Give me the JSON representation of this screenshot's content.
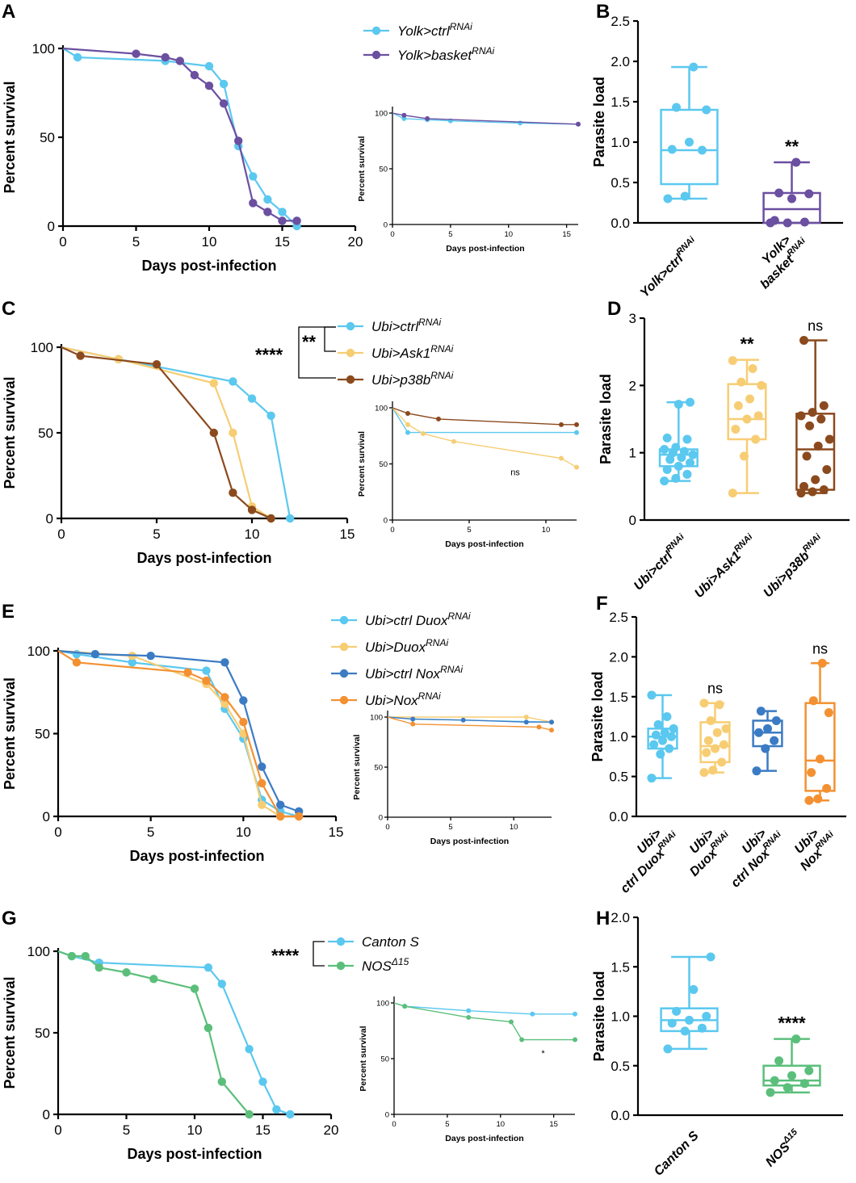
{
  "colors": {
    "light_blue": "#5bc8ef",
    "purple": "#6b4fa0",
    "yellow": "#f7cd74",
    "brown": "#8b4a1e",
    "blue": "#3b7bc4",
    "orange": "#f39132",
    "green": "#5bbf7b"
  },
  "panels": {
    "A": "A",
    "B": "B",
    "C": "C",
    "D": "D",
    "E": "E",
    "F": "F",
    "G": "G",
    "H": "H"
  },
  "chart_data": [
    {
      "id": "A",
      "type": "line",
      "xlabel": "Days post-infection",
      "ylabel": "Percent survival",
      "xlim": [
        0,
        20
      ],
      "ylim": [
        0,
        100
      ],
      "xticks": [
        "0",
        "5",
        "10",
        "15",
        "20"
      ],
      "yticks": [
        "0",
        "50",
        "100"
      ],
      "series": [
        {
          "name": "Yolk>ctrl",
          "sup": "RNAi",
          "color": "#5bc8ef",
          "x": [
            0,
            1,
            7,
            10,
            11,
            12,
            13,
            14,
            15,
            16
          ],
          "y": [
            100,
            95,
            93,
            90,
            80,
            45,
            28,
            15,
            8,
            0
          ]
        },
        {
          "name": "Yolk>basket",
          "sup": "RNAi",
          "color": "#6b4fa0",
          "x": [
            0,
            5,
            7,
            8,
            9,
            10,
            11,
            12,
            13,
            14,
            15,
            16
          ],
          "y": [
            100,
            97,
            95,
            93,
            85,
            79,
            69,
            48,
            13,
            8,
            3,
            3
          ]
        }
      ],
      "inset": {
        "xlabel": "Days post-infection",
        "ylabel": "Percent survival",
        "xlim": [
          0,
          16
        ],
        "ylim": [
          0,
          100
        ],
        "xticks": [
          "0",
          "5",
          "10",
          "15"
        ],
        "yticks": [
          "0",
          "50",
          "100"
        ],
        "series": [
          {
            "color": "#5bc8ef",
            "x": [
              0,
              1,
              3,
              5,
              11,
              16
            ],
            "y": [
              100,
              95,
              94,
              93,
              91,
              90
            ]
          },
          {
            "color": "#6b4fa0",
            "x": [
              0,
              1,
              3,
              16
            ],
            "y": [
              100,
              98,
              95,
              90
            ]
          }
        ]
      }
    },
    {
      "id": "B",
      "type": "box",
      "ylabel": "Parasite load",
      "ylim": [
        0,
        2.5
      ],
      "yticks": [
        "0.0",
        "0.5",
        "1.0",
        "1.5",
        "2.0",
        "2.5"
      ],
      "groups": [
        {
          "line1": "Yolk>ctrl",
          "sup": "RNAi",
          "line2": "",
          "color": "#5bc8ef",
          "min": 0.3,
          "q1": 0.48,
          "median": 0.9,
          "q3": 1.4,
          "max": 1.93,
          "points": [
            0.3,
            0.33,
            0.9,
            0.91,
            1.0,
            1.4,
            1.43,
            1.93
          ],
          "sig": ""
        },
        {
          "line1": "Yolk>",
          "line2": "basket",
          "sup": "RNAi",
          "color": "#6b4fa0",
          "min": 0.0,
          "q1": 0.0,
          "median": 0.17,
          "q3": 0.37,
          "max": 0.75,
          "points": [
            0.0,
            0.0,
            0.01,
            0.03,
            0.3,
            0.36,
            0.37,
            0.75
          ],
          "sig": "**"
        }
      ]
    },
    {
      "id": "C",
      "type": "line",
      "xlabel": "Days post-infection",
      "ylabel": "Percent survival",
      "xlim": [
        0,
        15
      ],
      "ylim": [
        0,
        100
      ],
      "xticks": [
        "0",
        "5",
        "10",
        "15"
      ],
      "yticks": [
        "0",
        "50",
        "100"
      ],
      "bracket_outer": "****",
      "bracket_inner": "**",
      "series": [
        {
          "name": "Ubi>ctrl",
          "sup": "RNAi",
          "color": "#5bc8ef",
          "x": [
            0,
            3,
            9,
            10,
            11,
            12
          ],
          "y": [
            100,
            93,
            80,
            70,
            60,
            0
          ]
        },
        {
          "name": "Ubi>Ask1",
          "sup": "RNAi",
          "color": "#f7cd74",
          "x": [
            0,
            3,
            8,
            9,
            10,
            11
          ],
          "y": [
            100,
            93,
            79,
            50,
            7,
            0
          ]
        },
        {
          "name": "Ubi>p38b",
          "sup": "RNAi",
          "color": "#8b4a1e",
          "x": [
            0,
            1,
            5,
            8,
            9,
            10,
            11
          ],
          "y": [
            100,
            95,
            90,
            50,
            15,
            5,
            0
          ]
        }
      ],
      "inset": {
        "xlabel": "Days post-infection",
        "ylabel": "Percent survival",
        "xlim": [
          0,
          12
        ],
        "ylim": [
          0,
          100
        ],
        "xticks": [
          "0",
          "5",
          "10"
        ],
        "yticks": [
          "0",
          "50",
          "100"
        ],
        "note": "ns",
        "series": [
          {
            "color": "#5bc8ef",
            "x": [
              0,
              1,
              12
            ],
            "y": [
              100,
              78,
              78
            ]
          },
          {
            "color": "#f7cd74",
            "x": [
              0,
              1,
              2,
              4,
              11,
              12
            ],
            "y": [
              100,
              85,
              77,
              70,
              55,
              47
            ]
          },
          {
            "color": "#8b4a1e",
            "x": [
              0,
              1,
              3,
              11,
              12
            ],
            "y": [
              100,
              95,
              90,
              85,
              85
            ]
          }
        ]
      }
    },
    {
      "id": "D",
      "type": "box",
      "ylabel": "Parasite load",
      "ylim": [
        0,
        3
      ],
      "yticks": [
        "0",
        "1",
        "2",
        "3"
      ],
      "groups": [
        {
          "line1": "Ubi>ctrl",
          "line2": "",
          "sup": "RNAi",
          "color": "#5bc8ef",
          "min": 0.58,
          "q1": 0.8,
          "median": 0.97,
          "q3": 1.05,
          "max": 1.75,
          "points": [
            0.58,
            0.62,
            0.68,
            0.75,
            0.8,
            0.85,
            0.9,
            0.93,
            0.97,
            1.0,
            1.02,
            1.05,
            1.08,
            1.2,
            1.22,
            1.72,
            1.75
          ],
          "sig": ""
        },
        {
          "line1": "Ubi>Ask1",
          "line2": "",
          "sup": "RNAi",
          "color": "#f7cd74",
          "min": 0.4,
          "q1": 1.2,
          "median": 1.5,
          "q3": 2.02,
          "max": 2.38,
          "points": [
            0.4,
            0.95,
            1.2,
            1.35,
            1.5,
            1.55,
            1.7,
            1.8,
            2.0,
            2.05,
            2.25,
            2.37
          ],
          "sig": "**"
        },
        {
          "line1": "Ubi>p38b",
          "line2": "",
          "sup": "RNAi",
          "color": "#8b4a1e",
          "min": 0.4,
          "q1": 0.45,
          "median": 1.05,
          "q3": 1.58,
          "max": 2.67,
          "points": [
            0.4,
            0.42,
            0.45,
            0.5,
            0.6,
            0.75,
            0.95,
            1.1,
            1.2,
            1.4,
            1.5,
            1.55,
            1.6,
            1.7,
            2.67
          ],
          "sig": "ns"
        }
      ]
    },
    {
      "id": "E",
      "type": "line",
      "xlabel": "Days post-infection",
      "ylabel": "Percent survival",
      "xlim": [
        0,
        15
      ],
      "ylim": [
        0,
        100
      ],
      "xticks": [
        "0",
        "5",
        "10",
        "15"
      ],
      "yticks": [
        "0",
        "50",
        "100"
      ],
      "series": [
        {
          "name": "Ubi>ctrl Duox",
          "sup": "RNAi",
          "color": "#5bc8ef",
          "x": [
            0,
            1,
            4,
            8,
            9,
            10,
            11,
            12,
            13
          ],
          "y": [
            100,
            98,
            93,
            88,
            65,
            47,
            10,
            3,
            0
          ]
        },
        {
          "name": "Ubi>Duox",
          "sup": "RNAi",
          "color": "#f7cd74",
          "x": [
            0,
            4,
            8,
            9,
            10,
            11,
            12,
            13
          ],
          "y": [
            100,
            97,
            80,
            68,
            50,
            7,
            0,
            0
          ]
        },
        {
          "name": "Ubi>ctrl Nox",
          "sup": "RNAi",
          "color": "#3b7bc4",
          "x": [
            0,
            2,
            5,
            9,
            10,
            11,
            12,
            13
          ],
          "y": [
            100,
            98,
            97,
            93,
            70,
            30,
            7,
            3
          ]
        },
        {
          "name": "Ubi>Nox",
          "sup": "RNAi",
          "color": "#f39132",
          "x": [
            0,
            1,
            7,
            8,
            9,
            10,
            11,
            12,
            13
          ],
          "y": [
            100,
            93,
            87,
            82,
            72,
            57,
            20,
            0,
            0
          ]
        }
      ],
      "inset": {
        "xlabel": "Days post-infection",
        "ylabel": "Percent survival",
        "xlim": [
          0,
          13
        ],
        "ylim": [
          0,
          100
        ],
        "xticks": [
          "0",
          "5",
          "10"
        ],
        "yticks": [
          "0",
          "50",
          "100"
        ],
        "series": [
          {
            "color": "#5bc8ef",
            "x": [
              0,
              2,
              13
            ],
            "y": [
              100,
              98,
              95
            ]
          },
          {
            "color": "#f7cd74",
            "x": [
              0,
              11,
              13
            ],
            "y": [
              100,
              100,
              95
            ]
          },
          {
            "color": "#3b7bc4",
            "x": [
              0,
              2,
              6,
              11,
              13
            ],
            "y": [
              100,
              98,
              97,
              95,
              95
            ]
          },
          {
            "color": "#f39132",
            "x": [
              0,
              2,
              12,
              13
            ],
            "y": [
              100,
              93,
              90,
              87
            ]
          }
        ]
      }
    },
    {
      "id": "F",
      "type": "box",
      "ylabel": "Parasite load",
      "ylim": [
        0,
        2.5
      ],
      "yticks": [
        "0.0",
        "0.5",
        "1.0",
        "1.5",
        "2.0",
        "2.5"
      ],
      "groups": [
        {
          "line1": "Ubi>",
          "line2": "ctrl Duox",
          "sup": "RNAi",
          "color": "#5bc8ef",
          "min": 0.48,
          "q1": 0.85,
          "median": 1.0,
          "q3": 1.1,
          "max": 1.52,
          "points": [
            0.48,
            0.78,
            0.85,
            0.9,
            0.95,
            1.0,
            1.02,
            1.05,
            1.1,
            1.15,
            1.25,
            1.52
          ],
          "sig": ""
        },
        {
          "line1": "Ubi>",
          "line2": "Duox",
          "sup": "RNAi",
          "color": "#f7cd74",
          "min": 0.55,
          "q1": 0.68,
          "median": 0.88,
          "q3": 1.18,
          "max": 1.42,
          "points": [
            0.55,
            0.58,
            0.68,
            0.8,
            0.85,
            0.9,
            0.95,
            1.05,
            1.1,
            1.2,
            1.4,
            1.42
          ],
          "sig": "ns"
        },
        {
          "line1": "Ubi>",
          "line2": "ctrl Nox",
          "sup": "RNAi",
          "color": "#3b7bc4",
          "min": 0.57,
          "q1": 0.88,
          "median": 1.05,
          "q3": 1.2,
          "max": 1.32,
          "points": [
            0.57,
            0.85,
            0.95,
            1.05,
            1.1,
            1.2,
            1.32
          ],
          "sig": ""
        },
        {
          "line1": "Ubi>",
          "line2": "Nox",
          "sup": "RNAi",
          "color": "#f39132",
          "min": 0.2,
          "q1": 0.32,
          "median": 0.7,
          "q3": 1.42,
          "max": 1.92,
          "points": [
            0.2,
            0.22,
            0.35,
            0.55,
            0.72,
            1.3,
            1.45,
            1.92
          ],
          "sig": "ns"
        }
      ]
    },
    {
      "id": "G",
      "type": "line",
      "xlabel": "Days post-infection",
      "ylabel": "Percent survival",
      "xlim": [
        0,
        20
      ],
      "ylim": [
        0,
        100
      ],
      "xticks": [
        "0",
        "5",
        "10",
        "15",
        "20"
      ],
      "yticks": [
        "0",
        "50",
        "100"
      ],
      "bracket_outer": "****",
      "series": [
        {
          "name": "Canton S",
          "sup": "",
          "color": "#5bc8ef",
          "x": [
            0,
            1,
            3,
            11,
            12,
            14,
            15,
            16,
            17
          ],
          "y": [
            100,
            97,
            93,
            90,
            80,
            40,
            20,
            3,
            0
          ]
        },
        {
          "name": "NOS",
          "sup": "Δ15",
          "color": "#5bbf7b",
          "x": [
            0,
            1,
            2,
            3,
            5,
            7,
            10,
            11,
            12,
            14
          ],
          "y": [
            100,
            97,
            97,
            90,
            87,
            83,
            77,
            53,
            20,
            0
          ]
        }
      ],
      "inset": {
        "xlabel": "Days post-infection",
        "ylabel": "Percent survival",
        "xlim": [
          0,
          17
        ],
        "ylim": [
          0,
          100
        ],
        "xticks": [
          "0",
          "5",
          "10",
          "15"
        ],
        "yticks": [
          "0",
          "50",
          "100"
        ],
        "note": "*",
        "series": [
          {
            "color": "#5bc8ef",
            "x": [
              0,
              1,
              7,
              13,
              17
            ],
            "y": [
              100,
              97,
              93,
              90,
              90
            ]
          },
          {
            "color": "#5bbf7b",
            "x": [
              0,
              1,
              7,
              11,
              12,
              17
            ],
            "y": [
              100,
              97,
              87,
              83,
              67,
              67
            ]
          }
        ]
      }
    },
    {
      "id": "H",
      "type": "box",
      "ylabel": "Parasite load",
      "ylim": [
        0,
        2.0
      ],
      "yticks": [
        "0.0",
        "0.5",
        "1.0",
        "1.5",
        "2.0"
      ],
      "groups": [
        {
          "line1": "Canton S",
          "line2": "",
          "sup": "",
          "color": "#5bc8ef",
          "min": 0.67,
          "q1": 0.85,
          "median": 0.96,
          "q3": 1.08,
          "max": 1.6,
          "points": [
            0.67,
            0.85,
            0.88,
            0.93,
            0.96,
            1.0,
            1.05,
            1.27,
            1.6
          ],
          "sig": ""
        },
        {
          "line1": "NOS",
          "line2": "",
          "sup": "Δ15",
          "color": "#5bbf7b",
          "min": 0.23,
          "q1": 0.3,
          "median": 0.35,
          "q3": 0.5,
          "max": 0.77,
          "points": [
            0.23,
            0.28,
            0.32,
            0.35,
            0.4,
            0.45,
            0.55,
            0.77
          ],
          "sig": "****"
        }
      ]
    }
  ]
}
